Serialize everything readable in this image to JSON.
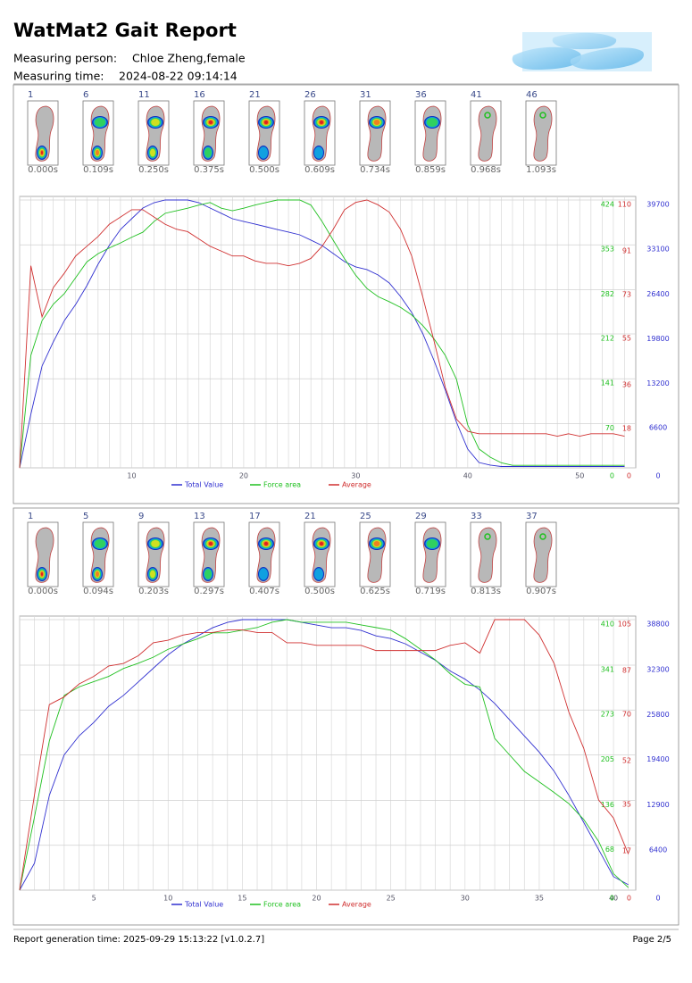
{
  "header": {
    "title": "WatMat2 Gait Report",
    "person_label": "Measuring person:",
    "person": "Chloe Zheng,female",
    "time_label": "Measuring time:",
    "time": "2024-08-22 09:14:14"
  },
  "sections": [
    {
      "frames": [
        {
          "number": 1,
          "time": "0.000s"
        },
        {
          "number": 6,
          "time": "0.109s"
        },
        {
          "number": 11,
          "time": "0.250s"
        },
        {
          "number": 16,
          "time": "0.375s"
        },
        {
          "number": 21,
          "time": "0.500s"
        },
        {
          "number": 26,
          "time": "0.609s"
        },
        {
          "number": 31,
          "time": "0.734s"
        },
        {
          "number": 36,
          "time": "0.859s"
        },
        {
          "number": 41,
          "time": "0.968s"
        },
        {
          "number": 46,
          "time": "1.093s"
        }
      ]
    },
    {
      "frames": [
        {
          "number": 1,
          "time": "0.000s"
        },
        {
          "number": 5,
          "time": "0.094s"
        },
        {
          "number": 9,
          "time": "0.203s"
        },
        {
          "number": 13,
          "time": "0.297s"
        },
        {
          "number": 17,
          "time": "0.407s"
        },
        {
          "number": 21,
          "time": "0.500s"
        },
        {
          "number": 25,
          "time": "0.625s"
        },
        {
          "number": 29,
          "time": "0.719s"
        },
        {
          "number": 33,
          "time": "0.813s"
        },
        {
          "number": 37,
          "time": "0.907s"
        }
      ]
    }
  ],
  "chart_data": [
    {
      "type": "line",
      "grid": true,
      "x": [
        0,
        1,
        2,
        3,
        4,
        5,
        6,
        7,
        8,
        9,
        10,
        11,
        12,
        13,
        14,
        15,
        16,
        17,
        18,
        19,
        20,
        21,
        22,
        23,
        24,
        25,
        26,
        27,
        28,
        29,
        30,
        31,
        32,
        33,
        34,
        35,
        36,
        37,
        38,
        39,
        40,
        41,
        42,
        43,
        44,
        45,
        46,
        47,
        48,
        49,
        50,
        51,
        52,
        53,
        54
      ],
      "xlim": [
        0,
        55
      ],
      "xticks": [
        10,
        20,
        30,
        40,
        50
      ],
      "ylim": [
        0,
        424
      ],
      "yticks": [
        0,
        70,
        141,
        212,
        282,
        353,
        424
      ],
      "y2lim": [
        0,
        110
      ],
      "y2ticks": [
        0,
        18,
        36,
        55,
        73,
        91,
        110
      ],
      "y3lim": [
        0,
        39700
      ],
      "y3ticks": [
        0,
        6600,
        13200,
        19800,
        26400,
        33100,
        39700
      ],
      "series": [
        {
          "name": "Total Value",
          "color": "#3030d0",
          "axis": "y3",
          "values": [
            0,
            7940,
            15090,
            18660,
            21840,
            24220,
            27000,
            30170,
            32950,
            35330,
            36920,
            38510,
            39300,
            39700,
            39700,
            39700,
            39300,
            38510,
            37720,
            36920,
            36520,
            36130,
            35730,
            35330,
            34940,
            34540,
            33750,
            32950,
            31760,
            30570,
            29780,
            29380,
            28580,
            27390,
            25410,
            23030,
            19850,
            15880,
            11510,
            6750,
            2780,
            790,
            400,
            200,
            200,
            200,
            200,
            200,
            200,
            200,
            200,
            200,
            200,
            200,
            200
          ]
        },
        {
          "name": "Force area",
          "color": "#20c020",
          "axis": "y",
          "values": [
            0,
            178,
            233,
            259,
            276,
            301,
            326,
            339,
            348,
            356,
            365,
            373,
            390,
            403,
            407,
            411,
            416,
            420,
            411,
            407,
            411,
            416,
            420,
            424,
            424,
            424,
            416,
            390,
            360,
            331,
            305,
            284,
            271,
            263,
            254,
            242,
            225,
            204,
            178,
            140,
            68,
            30,
            17,
            8,
            4,
            4,
            4,
            4,
            4,
            4,
            4,
            4,
            4,
            4,
            4
          ]
        },
        {
          "name": "Average",
          "color": "#d03030",
          "axis": "y2",
          "values": [
            0,
            83,
            62,
            74,
            80,
            87,
            91,
            95,
            100,
            103,
            106,
            106,
            103,
            100,
            98,
            97,
            94,
            91,
            89,
            87,
            87,
            85,
            84,
            84,
            83,
            84,
            86,
            91,
            98,
            106,
            109,
            110,
            108,
            105,
            98,
            87,
            70,
            52,
            33,
            20,
            15,
            14,
            14,
            14,
            14,
            14,
            14,
            14,
            13,
            14,
            13,
            14,
            14,
            14,
            13
          ]
        }
      ]
    },
    {
      "type": "line",
      "grid": true,
      "x": [
        0,
        1,
        2,
        3,
        4,
        5,
        6,
        7,
        8,
        9,
        10,
        11,
        12,
        13,
        14,
        15,
        16,
        17,
        18,
        19,
        20,
        21,
        22,
        23,
        24,
        25,
        26,
        27,
        28,
        29,
        30,
        31,
        32,
        33,
        34,
        35,
        36,
        37,
        38,
        39,
        40,
        41
      ],
      "xlim": [
        0,
        41.5
      ],
      "xticks": [
        5,
        10,
        15,
        20,
        25,
        30,
        35,
        40
      ],
      "ylim": [
        0,
        410
      ],
      "yticks": [
        0,
        68,
        136,
        205,
        273,
        341,
        410
      ],
      "y2lim": [
        0,
        105
      ],
      "y2ticks": [
        0,
        17,
        35,
        52,
        70,
        87,
        105
      ],
      "y3lim": [
        0,
        38800
      ],
      "y3ticks": [
        0,
        6400,
        12900,
        19400,
        25800,
        32300,
        38800
      ],
      "series": [
        {
          "name": "Total Value",
          "color": "#3030d0",
          "axis": "y3",
          "values": [
            0,
            3880,
            13580,
            19400,
            22120,
            24060,
            26380,
            27940,
            29880,
            31820,
            33760,
            35310,
            36470,
            37640,
            38410,
            38800,
            38800,
            38800,
            38800,
            38410,
            38020,
            37640,
            37640,
            37250,
            36470,
            36080,
            35310,
            34140,
            32980,
            31430,
            30260,
            28710,
            26770,
            24440,
            22120,
            19790,
            17070,
            13580,
            9700,
            5820,
            1940,
            780
          ]
        },
        {
          "name": "Force area",
          "color": "#20c020",
          "axis": "y",
          "values": [
            0,
            111,
            226,
            295,
            308,
            316,
            324,
            336,
            344,
            353,
            365,
            373,
            381,
            390,
            390,
            394,
            398,
            406,
            410,
            406,
            406,
            406,
            406,
            402,
            398,
            394,
            381,
            365,
            349,
            328,
            312,
            308,
            230,
            205,
            180,
            164,
            148,
            131,
            107,
            74,
            25,
            4
          ]
        },
        {
          "name": "Average",
          "color": "#d03030",
          "axis": "y2",
          "values": [
            0,
            37,
            72,
            75,
            80,
            83,
            87,
            88,
            91,
            96,
            97,
            99,
            100,
            100,
            101,
            101,
            100,
            100,
            96,
            96,
            95,
            95,
            95,
            95,
            93,
            93,
            93,
            93,
            93,
            95,
            96,
            92,
            105,
            105,
            105,
            99,
            88,
            69,
            55,
            35,
            28,
            14
          ]
        }
      ]
    }
  ],
  "footer": {
    "generated": "Report generation time: 2025-09-29 15:13:22 [v1.0.2.7]",
    "page": "Page 2/5"
  }
}
